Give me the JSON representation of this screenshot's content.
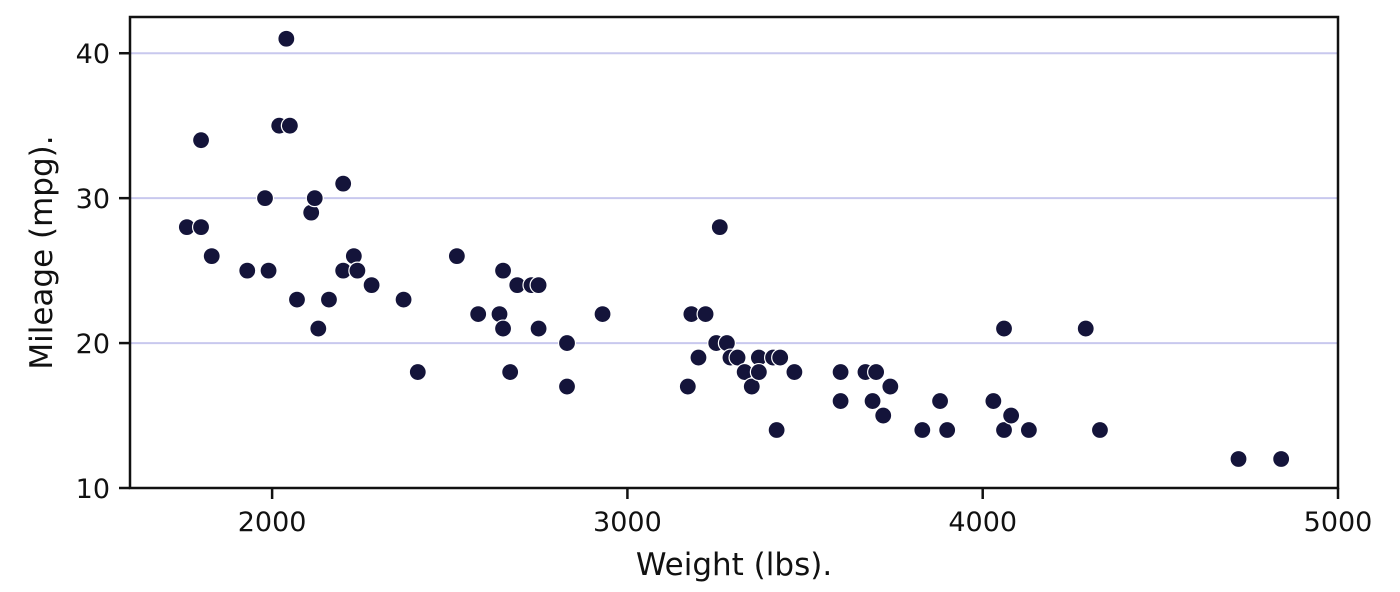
{
  "chart_data": {
    "type": "scatter",
    "xlabel": "Weight (lbs).",
    "ylabel": "Mileage (mpg).",
    "xlim": [
      1600,
      5000
    ],
    "ylim": [
      10,
      42.5
    ],
    "xticks": [
      2000,
      3000,
      4000,
      5000
    ],
    "xtick_labels": [
      "2000",
      "3000",
      "4000",
      "5000"
    ],
    "yticks": [
      10,
      20,
      30,
      40
    ],
    "ytick_labels": [
      "10",
      "20",
      "30",
      "40"
    ],
    "grid": "horizontal",
    "colors": {
      "point": "#14143a",
      "point_edge": "#ffffff",
      "grid": "#c8c8ee",
      "axis": "#111111"
    },
    "points": [
      [
        1760,
        28
      ],
      [
        1800,
        28
      ],
      [
        1800,
        34
      ],
      [
        1830,
        26
      ],
      [
        1930,
        25
      ],
      [
        1980,
        30
      ],
      [
        1990,
        25
      ],
      [
        2020,
        35
      ],
      [
        2040,
        41
      ],
      [
        2050,
        35
      ],
      [
        2070,
        23
      ],
      [
        2110,
        29
      ],
      [
        2120,
        30
      ],
      [
        2130,
        21
      ],
      [
        2160,
        23
      ],
      [
        2200,
        31
      ],
      [
        2200,
        25
      ],
      [
        2230,
        26
      ],
      [
        2240,
        25
      ],
      [
        2280,
        24
      ],
      [
        2370,
        23
      ],
      [
        2410,
        18
      ],
      [
        2520,
        26
      ],
      [
        2580,
        22
      ],
      [
        2640,
        22
      ],
      [
        2650,
        25
      ],
      [
        2650,
        21
      ],
      [
        2670,
        18
      ],
      [
        2690,
        24
      ],
      [
        2730,
        24
      ],
      [
        2750,
        24
      ],
      [
        2750,
        21
      ],
      [
        2830,
        20
      ],
      [
        2830,
        17
      ],
      [
        2930,
        22
      ],
      [
        3170,
        17
      ],
      [
        3180,
        22
      ],
      [
        3200,
        19
      ],
      [
        3220,
        22
      ],
      [
        3250,
        20
      ],
      [
        3260,
        28
      ],
      [
        3280,
        20
      ],
      [
        3290,
        19
      ],
      [
        3310,
        19
      ],
      [
        3330,
        18
      ],
      [
        3350,
        17
      ],
      [
        3370,
        19
      ],
      [
        3370,
        18
      ],
      [
        3410,
        19
      ],
      [
        3420,
        14
      ],
      [
        3430,
        19
      ],
      [
        3470,
        18
      ],
      [
        3600,
        18
      ],
      [
        3600,
        16
      ],
      [
        3670,
        18
      ],
      [
        3690,
        16
      ],
      [
        3700,
        18
      ],
      [
        3720,
        15
      ],
      [
        3740,
        17
      ],
      [
        3830,
        14
      ],
      [
        3880,
        16
      ],
      [
        3900,
        14
      ],
      [
        4030,
        16
      ],
      [
        4060,
        14
      ],
      [
        4060,
        21
      ],
      [
        4080,
        15
      ],
      [
        4130,
        14
      ],
      [
        4290,
        21
      ],
      [
        4330,
        14
      ],
      [
        4720,
        12
      ],
      [
        4840,
        12
      ]
    ]
  }
}
